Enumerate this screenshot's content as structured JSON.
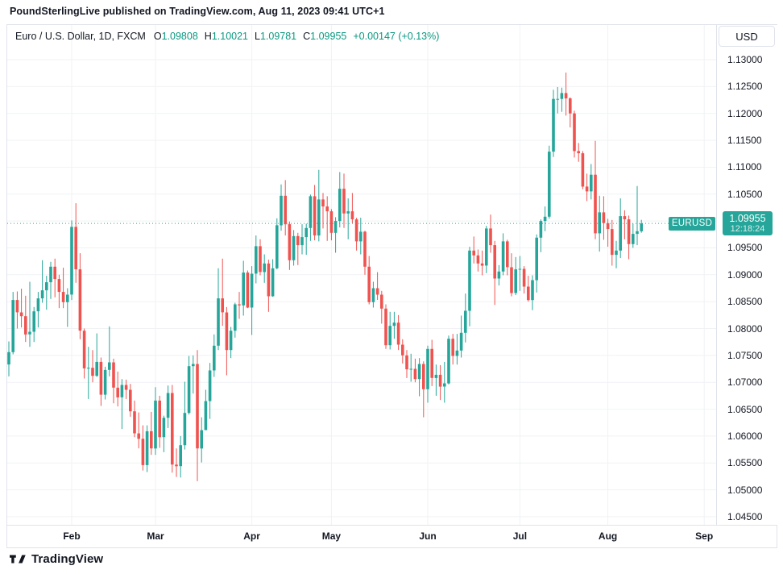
{
  "attribution": {
    "text": "PoundSterlingLive published on TradingView.com, Aug 11, 2023 09:41 UTC+1"
  },
  "toolbar": {
    "currency": "USD"
  },
  "legend": {
    "symbol": "Euro / U.S. Dollar, 1D, FXCM",
    "open_label": "O",
    "open": "1.09808",
    "high_label": "H",
    "high": "1.10021",
    "low_label": "L",
    "low": "1.09781",
    "close_label": "C",
    "close": "1.09955",
    "change": "+0.00147 (+0.13%)"
  },
  "price_flag": {
    "symbol_label": "EURUSD",
    "price": "1.09955",
    "countdown": "12:18:24"
  },
  "footer": {
    "brand": "TradingView"
  },
  "chart_data": {
    "type": "candlestick",
    "title": "Euro / U.S. Dollar, 1D, FXCM",
    "symbol": "EURUSD",
    "timeframe": "1D",
    "exchange": "FXCM",
    "last_price": 1.09955,
    "colors": {
      "up": "#26a69a",
      "down": "#ef5350",
      "grid": "#f0f2f5",
      "axis_text": "#131722",
      "price_line": "#26a69a",
      "legend_value": "#089981"
    },
    "y_axis": {
      "min": 1.045,
      "max": 1.13,
      "step": 0.005,
      "tick_labels": [
        "1.13000",
        "1.12500",
        "1.12000",
        "1.11500",
        "1.11000",
        "1.10500",
        "1.09500",
        "1.09000",
        "1.08500",
        "1.08000",
        "1.07500",
        "1.07000",
        "1.06500",
        "1.06000",
        "1.05500",
        "1.05000",
        "1.04500"
      ]
    },
    "x_axis": {
      "month_ticks": [
        {
          "label": "Feb",
          "bar": 15
        },
        {
          "label": "Mar",
          "bar": 35
        },
        {
          "label": "Apr",
          "bar": 58
        },
        {
          "label": "May",
          "bar": 77
        },
        {
          "label": "Jun",
          "bar": 100
        },
        {
          "label": "Jul",
          "bar": 122
        },
        {
          "label": "Aug",
          "bar": 143
        },
        {
          "label": "Sep",
          "bar": 166
        }
      ]
    },
    "candles": [
      [
        1.0733,
        1.0776,
        1.0711,
        1.0756
      ],
      [
        1.0756,
        1.0868,
        1.0752,
        1.0853
      ],
      [
        1.0853,
        1.0869,
        1.08,
        1.083
      ],
      [
        1.083,
        1.0874,
        1.0802,
        1.0823
      ],
      [
        1.0823,
        1.0861,
        1.0775,
        1.0789
      ],
      [
        1.0789,
        1.0887,
        1.0766,
        1.0794
      ],
      [
        1.0794,
        1.084,
        1.0775,
        1.0832
      ],
      [
        1.0832,
        1.0868,
        1.0802,
        1.0856
      ],
      [
        1.0856,
        1.0927,
        1.0848,
        1.0871
      ],
      [
        1.0871,
        1.0898,
        1.0835,
        1.0886
      ],
      [
        1.0886,
        1.0924,
        1.0855,
        1.0915
      ],
      [
        1.0915,
        1.093,
        1.0858,
        1.0892
      ],
      [
        1.0892,
        1.09,
        1.0838,
        1.0868
      ],
      [
        1.0868,
        1.0913,
        1.0838,
        1.0849
      ],
      [
        1.0849,
        1.0875,
        1.0803,
        1.0863
      ],
      [
        1.0863,
        1.1001,
        1.0853,
        1.0989
      ],
      [
        1.0989,
        1.1033,
        1.0885,
        1.091
      ],
      [
        1.091,
        1.094,
        1.078,
        1.0796
      ],
      [
        1.0796,
        1.08,
        1.0707,
        1.0726
      ],
      [
        1.0726,
        1.0766,
        1.0669,
        1.0727
      ],
      [
        1.0727,
        1.076,
        1.07,
        1.0712
      ],
      [
        1.0712,
        1.0791,
        1.071,
        1.0738
      ],
      [
        1.0738,
        1.0746,
        1.0656,
        1.0677
      ],
      [
        1.0677,
        1.0729,
        1.0668,
        1.0723
      ],
      [
        1.0723,
        1.0804,
        1.0711,
        1.0737
      ],
      [
        1.0737,
        1.0744,
        1.0661,
        1.069
      ],
      [
        1.069,
        1.072,
        1.0655,
        1.0672
      ],
      [
        1.0672,
        1.0706,
        1.0613,
        1.0695
      ],
      [
        1.0695,
        1.0705,
        1.0669,
        1.0686
      ],
      [
        1.0686,
        1.0697,
        1.0636,
        1.0646
      ],
      [
        1.0646,
        1.0666,
        1.0598,
        1.0605
      ],
      [
        1.0605,
        1.0644,
        1.0577,
        1.0595
      ],
      [
        1.0595,
        1.062,
        1.0536,
        1.0546
      ],
      [
        1.0546,
        1.062,
        1.0533,
        1.0609
      ],
      [
        1.0609,
        1.0645,
        1.0565,
        1.0577
      ],
      [
        1.0577,
        1.0691,
        1.0565,
        1.0666
      ],
      [
        1.0666,
        1.0675,
        1.0578,
        1.0598
      ],
      [
        1.0598,
        1.0638,
        1.057,
        1.0634
      ],
      [
        1.0634,
        1.0694,
        1.0615,
        1.068
      ],
      [
        1.068,
        1.0695,
        1.0532,
        1.0547
      ],
      [
        1.0547,
        1.0577,
        1.0524,
        1.0544
      ],
      [
        1.0544,
        1.06,
        1.0523,
        1.0583
      ],
      [
        1.0583,
        1.0701,
        1.0575,
        1.0643
      ],
      [
        1.0643,
        1.0749,
        1.064,
        1.073
      ],
      [
        1.073,
        1.075,
        1.0679,
        1.0734
      ],
      [
        1.0734,
        1.076,
        1.0516,
        1.0577
      ],
      [
        1.0577,
        1.0635,
        1.0551,
        1.0611
      ],
      [
        1.0611,
        1.0686,
        1.0611,
        1.0665
      ],
      [
        1.0665,
        1.0736,
        1.0632,
        1.0722
      ],
      [
        1.0722,
        1.0789,
        1.071,
        1.0768
      ],
      [
        1.0768,
        1.0912,
        1.076,
        1.0856
      ],
      [
        1.0856,
        1.093,
        1.0805,
        1.083
      ],
      [
        1.083,
        1.084,
        1.0713,
        1.076
      ],
      [
        1.076,
        1.0803,
        1.0745,
        1.0796
      ],
      [
        1.0796,
        1.0848,
        1.0783,
        1.0845
      ],
      [
        1.0845,
        1.0868,
        1.0818,
        1.0843
      ],
      [
        1.0843,
        1.0926,
        1.0824,
        1.0904
      ],
      [
        1.0904,
        1.0908,
        1.0838,
        1.0839
      ],
      [
        1.0839,
        1.0916,
        1.0788,
        1.0902
      ],
      [
        1.0902,
        1.0973,
        1.0884,
        1.0953
      ],
      [
        1.0953,
        1.0966,
        1.0899,
        1.0905
      ],
      [
        1.0905,
        1.0938,
        1.0885,
        1.0921
      ],
      [
        1.0921,
        1.0928,
        1.0831,
        1.086
      ],
      [
        1.086,
        1.0929,
        1.0859,
        1.0912
      ],
      [
        1.0912,
        1.1005,
        1.091,
        1.0992
      ],
      [
        1.0992,
        1.1068,
        1.0982,
        1.1047
      ],
      [
        1.1047,
        1.1076,
        1.0973,
        1.0994
      ],
      [
        1.0994,
        1.0999,
        1.0909,
        1.0927
      ],
      [
        1.0927,
        1.0983,
        1.0917,
        1.0972
      ],
      [
        1.0972,
        1.0978,
        1.0918,
        1.0955
      ],
      [
        1.0955,
        1.0994,
        1.0938,
        1.097
      ],
      [
        1.097,
        1.0995,
        1.0937,
        1.0987
      ],
      [
        1.0987,
        1.1049,
        1.0963,
        1.1046
      ],
      [
        1.1046,
        1.1067,
        1.0964,
        1.0973
      ],
      [
        1.0973,
        1.1095,
        1.0962,
        1.104
      ],
      [
        1.104,
        1.1052,
        1.0986,
        1.1027
      ],
      [
        1.1027,
        1.1046,
        1.0963,
        1.1018
      ],
      [
        1.1018,
        1.1022,
        1.0964,
        1.0978
      ],
      [
        1.0978,
        1.1007,
        1.0941,
        1.1
      ],
      [
        1.1,
        1.1091,
        1.0988,
        1.106
      ],
      [
        1.106,
        1.1088,
        1.0987,
        1.1014
      ],
      [
        1.1014,
        1.1042,
        1.0966,
        1.1018
      ],
      [
        1.1018,
        1.1052,
        1.0996,
        1.1003
      ],
      [
        1.1003,
        1.1006,
        1.0945,
        1.0962
      ],
      [
        1.0962,
        1.1006,
        1.0938,
        1.098
      ],
      [
        1.098,
        1.0982,
        1.09,
        1.0915
      ],
      [
        1.0915,
        1.0935,
        1.0845,
        1.0849
      ],
      [
        1.0849,
        1.0887,
        1.0839,
        1.0875
      ],
      [
        1.0875,
        1.0905,
        1.0853,
        1.0863
      ],
      [
        1.0863,
        1.087,
        1.0809,
        1.0837
      ],
      [
        1.0837,
        1.0845,
        1.0762,
        1.0769
      ],
      [
        1.0769,
        1.0831,
        1.0761,
        1.0805
      ],
      [
        1.0805,
        1.0831,
        1.0781,
        1.0811
      ],
      [
        1.0811,
        1.0825,
        1.076,
        1.077
      ],
      [
        1.077,
        1.078,
        1.0735,
        1.075
      ],
      [
        1.075,
        1.076,
        1.0708,
        1.0724
      ],
      [
        1.0724,
        1.0753,
        1.0701,
        1.0725
      ],
      [
        1.0725,
        1.0744,
        1.07,
        1.0706
      ],
      [
        1.0706,
        1.0745,
        1.0674,
        1.0734
      ],
      [
        1.0734,
        1.0739,
        1.0635,
        1.0687
      ],
      [
        1.0687,
        1.0768,
        1.0662,
        1.0762
      ],
      [
        1.0762,
        1.0779,
        1.0693,
        1.0708
      ],
      [
        1.0708,
        1.0733,
        1.0675,
        1.0714
      ],
      [
        1.0714,
        1.0732,
        1.0667,
        1.0692
      ],
      [
        1.0692,
        1.0738,
        1.0662,
        1.0698
      ],
      [
        1.0698,
        1.0787,
        1.0696,
        1.0781
      ],
      [
        1.0781,
        1.079,
        1.0733,
        1.0749
      ],
      [
        1.0749,
        1.079,
        1.0733,
        1.0759
      ],
      [
        1.0759,
        1.0824,
        1.0746,
        1.0792
      ],
      [
        1.0792,
        1.0865,
        1.0774,
        1.0833
      ],
      [
        1.0833,
        1.0952,
        1.0804,
        1.0945
      ],
      [
        1.0945,
        1.0971,
        1.0921,
        1.0936
      ],
      [
        1.0936,
        1.0947,
        1.0906,
        1.0921
      ],
      [
        1.0921,
        1.0945,
        1.0899,
        1.0917
      ],
      [
        1.0917,
        1.0991,
        1.0903,
        1.0986
      ],
      [
        1.0986,
        1.1012,
        1.0941,
        1.0955
      ],
      [
        1.0955,
        1.0963,
        1.0844,
        1.0893
      ],
      [
        1.0893,
        1.0918,
        1.088,
        1.0906
      ],
      [
        1.0906,
        1.0977,
        1.0899,
        1.0962
      ],
      [
        1.0962,
        1.0965,
        1.0899,
        1.0914
      ],
      [
        1.0914,
        1.094,
        1.086,
        1.0866
      ],
      [
        1.0866,
        1.0933,
        1.0862,
        1.091
      ],
      [
        1.091,
        1.0935,
        1.087,
        1.0911
      ],
      [
        1.0911,
        1.0916,
        1.0865,
        1.0878
      ],
      [
        1.0878,
        1.0898,
        1.085,
        1.0853
      ],
      [
        1.0853,
        1.0899,
        1.0834,
        1.089
      ],
      [
        1.089,
        1.0975,
        1.0867,
        1.0969
      ],
      [
        1.0969,
        1.1003,
        1.0942,
        1.1
      ],
      [
        1.1,
        1.1027,
        1.0981,
        1.1008
      ],
      [
        1.1008,
        1.114,
        1.1004,
        1.1129
      ],
      [
        1.1129,
        1.1244,
        1.1119,
        1.1227
      ],
      [
        1.1227,
        1.1249,
        1.12,
        1.1227
      ],
      [
        1.1227,
        1.1248,
        1.1203,
        1.1238
      ],
      [
        1.1238,
        1.1276,
        1.1196,
        1.1228
      ],
      [
        1.1228,
        1.123,
        1.1174,
        1.12
      ],
      [
        1.12,
        1.1205,
        1.1118,
        1.113
      ],
      [
        1.113,
        1.1145,
        1.111,
        1.1126
      ],
      [
        1.1126,
        1.113,
        1.1059,
        1.1064
      ],
      [
        1.1064,
        1.1088,
        1.1037,
        1.1055
      ],
      [
        1.1055,
        1.1106,
        1.104,
        1.1086
      ],
      [
        1.1086,
        1.1149,
        1.0966,
        1.0977
      ],
      [
        1.0977,
        1.1047,
        1.0943,
        1.1016
      ],
      [
        1.1016,
        1.1046,
        1.0965,
        1.0996
      ],
      [
        1.0996,
        1.1004,
        1.0952,
        1.0985
      ],
      [
        1.0985,
        1.1002,
        1.0917,
        1.0937
      ],
      [
        1.0937,
        1.0963,
        1.0912,
        1.0945
      ],
      [
        1.0945,
        1.1042,
        1.0931,
        1.1009
      ],
      [
        1.1009,
        1.102,
        1.0966,
        1.1003
      ],
      [
        1.1003,
        1.101,
        1.0929,
        1.0957
      ],
      [
        1.0957,
        1.0995,
        1.095,
        1.0976
      ],
      [
        1.0976,
        1.1065,
        1.0955,
        1.0981
      ],
      [
        1.09808,
        1.10021,
        1.09781,
        1.09955
      ]
    ]
  }
}
